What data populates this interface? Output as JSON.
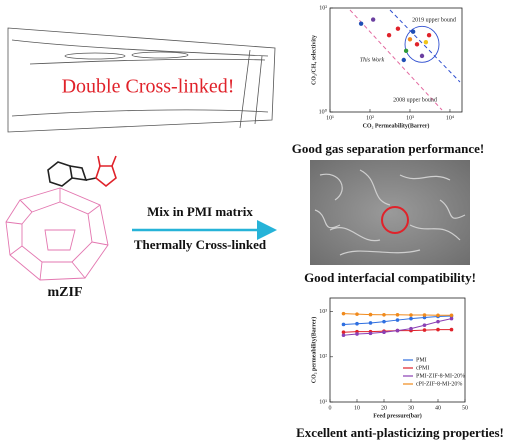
{
  "left": {
    "banner": "Double Cross-linked!",
    "molecule_label": "mZIF",
    "arrow_top": "Mix in PMI matrix",
    "arrow_bottom": "Thermally Cross-linked"
  },
  "captions": [
    "Good gas separation performance!",
    "Good interfacial compatibility!",
    "Excellent anti-plasticizing properties!"
  ],
  "chart_data": [
    {
      "type": "scatter",
      "xlabel": "CO₂ Permeability(Barrer)",
      "ylabel": "CO₂/CH₄ selectivity",
      "xlog": true,
      "ylog": true,
      "xlim": [
        10,
        20000
      ],
      "ylim": [
        1,
        100
      ],
      "xticks": [
        {
          "value": 10,
          "label": "10¹"
        },
        {
          "value": 100,
          "label": "10²"
        },
        {
          "value": 1000,
          "label": "10³"
        },
        {
          "value": 10000,
          "label": "10⁴"
        }
      ],
      "yticks": [
        {
          "value": 1,
          "label": "10⁰"
        },
        {
          "value": 100,
          "label": "10²"
        }
      ],
      "annotations": [
        "2019 upper bound",
        "2008 upper bound",
        "This Work"
      ],
      "x": [
        60,
        120,
        300,
        500,
        800,
        1000,
        1200,
        1500,
        2000,
        2500,
        3000,
        700
      ],
      "y": [
        50,
        60,
        30,
        40,
        15,
        25,
        35,
        20,
        12,
        22,
        30,
        10
      ],
      "colors": [
        "#1f4fb5",
        "#6b3fa0",
        "#e0222a",
        "#e0222a",
        "#2e9b3b",
        "#f08a1c",
        "#1f4fb5",
        "#e0222a",
        "#6b3fa0",
        "#f0c419",
        "#e0222a",
        "#1f4fb5"
      ]
    },
    {
      "type": "line",
      "xlabel": "Feed pressure(bar)",
      "ylabel": "CO₂ permeability(Barrer)",
      "ylog": true,
      "xlim": [
        0,
        50
      ],
      "ylim": [
        10,
        2000
      ],
      "xticks": [
        0,
        10,
        20,
        30,
        40,
        50
      ],
      "yticks": [
        {
          "value": 10,
          "label": "10¹"
        },
        {
          "value": 100,
          "label": "10²"
        },
        {
          "value": 1000,
          "label": "10³"
        }
      ],
      "legend": "lower right",
      "x": [
        5,
        10,
        15,
        20,
        25,
        30,
        35,
        40,
        45
      ],
      "series": [
        {
          "name": "PMI",
          "color": "#2f6fe0",
          "values": [
            520,
            540,
            560,
            600,
            650,
            700,
            740,
            780,
            800
          ]
        },
        {
          "name": "cPMI",
          "color": "#e0222a",
          "values": [
            350,
            360,
            360,
            370,
            380,
            380,
            390,
            400,
            400
          ]
        },
        {
          "name": "PMI-ZIF-8-MI-20%",
          "color": "#8a3fb5",
          "values": [
            300,
            320,
            330,
            350,
            380,
            420,
            500,
            600,
            700
          ]
        },
        {
          "name": "cPI-ZIF-8-MI-20%",
          "color": "#f08a1c",
          "values": [
            900,
            880,
            860,
            850,
            850,
            840,
            840,
            830,
            830
          ]
        }
      ]
    }
  ]
}
